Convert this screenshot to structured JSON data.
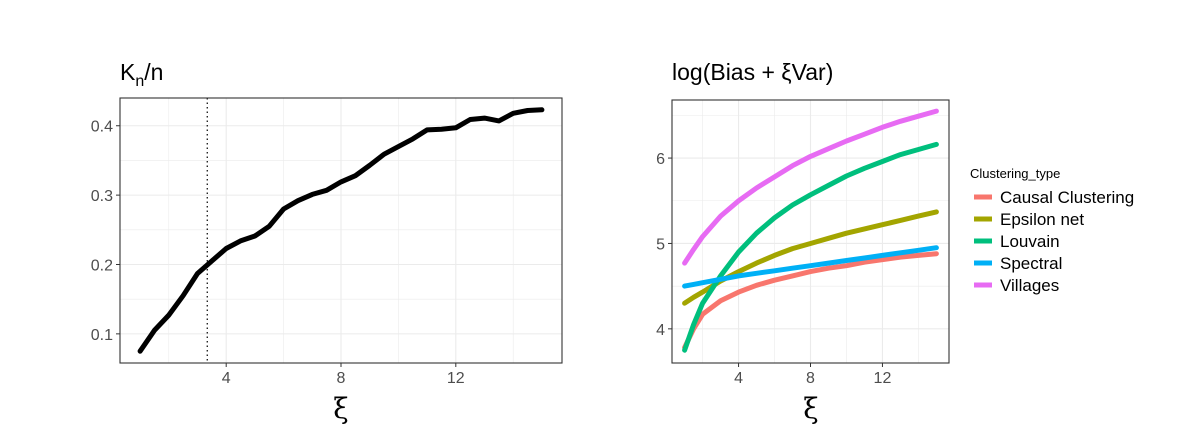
{
  "chart_data": [
    {
      "type": "line",
      "title": "Kn/n",
      "title_main": "K",
      "title_sub": "n",
      "title_rest": "/n",
      "xlabel": "ξ",
      "ylabel": "",
      "xlim": [
        0.3,
        15.7
      ],
      "ylim": [
        0.058,
        0.44
      ],
      "xticks": [
        4,
        8,
        12
      ],
      "yticks": [
        0.1,
        0.2,
        0.3,
        0.4
      ],
      "ytick_labels": [
        "0.1",
        "0.2",
        "0.3",
        "0.4"
      ],
      "xtick_labels": [
        "4",
        "8",
        "12"
      ],
      "grid": true,
      "vline": {
        "x": 3.34,
        "style": "dotted"
      },
      "series": [
        {
          "color": "#000000",
          "x": [
            1,
            1.5,
            2,
            2.5,
            3,
            3.5,
            4,
            4.5,
            5,
            5.5,
            6,
            6.5,
            7,
            7.5,
            8,
            8.5,
            9,
            9.5,
            10,
            10.5,
            11,
            11.5,
            12,
            12.5,
            13,
            13.5,
            14,
            14.5,
            15
          ],
          "y": [
            0.075,
            0.105,
            0.127,
            0.155,
            0.187,
            0.205,
            0.223,
            0.234,
            0.241,
            0.255,
            0.28,
            0.292,
            0.301,
            0.307,
            0.319,
            0.328,
            0.343,
            0.359,
            0.37,
            0.381,
            0.394,
            0.395,
            0.397,
            0.409,
            0.411,
            0.407,
            0.418,
            0.422,
            0.423
          ]
        }
      ]
    },
    {
      "type": "line",
      "title": "log(Bias + ξVar)",
      "xlabel": "ξ",
      "ylabel": "",
      "xlim": [
        0.3,
        15.7
      ],
      "ylim": [
        3.6,
        6.68
      ],
      "xticks": [
        4,
        8,
        12
      ],
      "yticks": [
        4,
        5,
        6
      ],
      "xtick_labels": [
        "4",
        "8",
        "12"
      ],
      "ytick_labels": [
        "4",
        "5",
        "6"
      ],
      "grid": true,
      "legend": {
        "title": "Clustering_type",
        "placement": "right"
      },
      "x": [
        1,
        1.5,
        2,
        3,
        4,
        5,
        6,
        7,
        8,
        9,
        10,
        11,
        12,
        13,
        14,
        15
      ],
      "series": [
        {
          "name": "Causal Clustering",
          "color": "#F8766D",
          "values": [
            3.78,
            4.0,
            4.17,
            4.33,
            4.43,
            4.51,
            4.57,
            4.62,
            4.67,
            4.71,
            4.74,
            4.78,
            4.81,
            4.84,
            4.86,
            4.88
          ]
        },
        {
          "name": "Epsilon net",
          "color": "#A3A500",
          "values": [
            4.3,
            4.37,
            4.43,
            4.56,
            4.67,
            4.77,
            4.86,
            4.94,
            5.0,
            5.06,
            5.12,
            5.17,
            5.22,
            5.27,
            5.32,
            5.37
          ]
        },
        {
          "name": "Louvain",
          "color": "#00BF7D",
          "values": [
            3.75,
            4.05,
            4.3,
            4.62,
            4.9,
            5.12,
            5.3,
            5.45,
            5.57,
            5.68,
            5.79,
            5.88,
            5.96,
            6.04,
            6.1,
            6.16
          ]
        },
        {
          "name": "Spectral",
          "color": "#00B0F6",
          "values": [
            4.5,
            4.52,
            4.54,
            4.58,
            4.62,
            4.65,
            4.68,
            4.71,
            4.74,
            4.77,
            4.8,
            4.83,
            4.86,
            4.89,
            4.92,
            4.95
          ]
        },
        {
          "name": "Villages",
          "color": "#E76BF3",
          "values": [
            4.77,
            4.93,
            5.08,
            5.32,
            5.5,
            5.65,
            5.78,
            5.91,
            6.02,
            6.11,
            6.2,
            6.28,
            6.36,
            6.43,
            6.49,
            6.55
          ]
        }
      ]
    }
  ]
}
